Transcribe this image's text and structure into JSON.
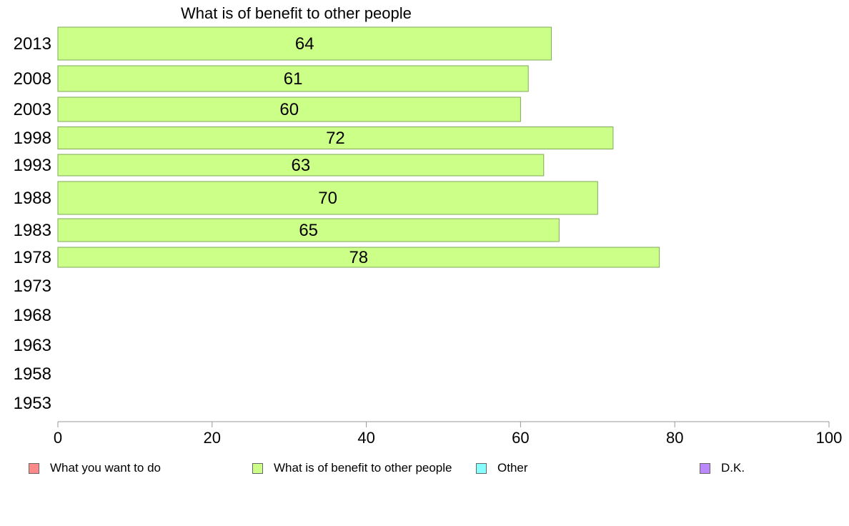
{
  "chart_data": {
    "type": "bar",
    "orientation": "horizontal",
    "title": "What is of benefit to other people",
    "categories": [
      "2013",
      "2008",
      "2003",
      "1998",
      "1993",
      "1988",
      "1983",
      "1978",
      "1973",
      "1968",
      "1963",
      "1958",
      "1953"
    ],
    "series": [
      {
        "name": "What is of benefit to other people",
        "color": "#ccff88",
        "values": [
          64,
          61,
          60,
          72,
          63,
          70,
          65,
          78,
          null,
          null,
          null,
          null,
          null
        ]
      }
    ],
    "xlim": [
      0,
      100
    ],
    "xticks": [
      "0",
      "20",
      "40",
      "60",
      "80",
      "100"
    ],
    "grid": false,
    "legend_position": "bottom",
    "legend": [
      {
        "label": "What you want to do",
        "color": "#ff8888"
      },
      {
        "label": "What is of benefit to other people",
        "color": "#ccff88"
      },
      {
        "label": "Other",
        "color": "#88ffff"
      },
      {
        "label": "D.K.",
        "color": "#bb88ff"
      }
    ]
  }
}
